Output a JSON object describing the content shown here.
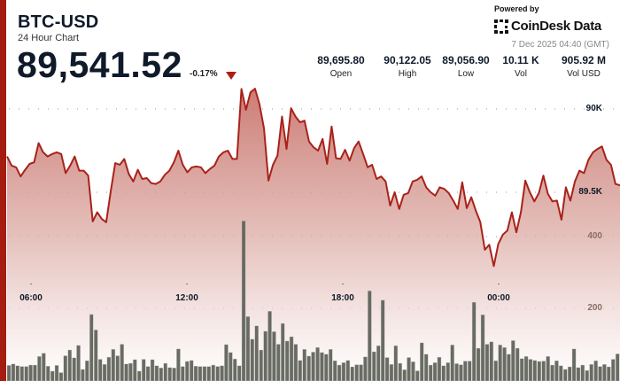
{
  "header": {
    "symbol": "BTC-USD",
    "subtitle": "24 Hour Chart",
    "price": "89,541.52",
    "change": "-0.17%",
    "change_direction": "down"
  },
  "stats": [
    {
      "value": "89,695.80",
      "label": "Open"
    },
    {
      "value": "90,122.05",
      "label": "High"
    },
    {
      "value": "89,056.90",
      "label": "Low"
    },
    {
      "value": "10.11 K",
      "label": "Vol"
    },
    {
      "value": "905.92 M",
      "label": "Vol USD"
    }
  ],
  "branding": {
    "powered_by": "Powered by",
    "logo_text": "CoinDesk Data",
    "timestamp": "7 Dec 2025 04:40 (GMT)"
  },
  "colors": {
    "accent": "#a51c10",
    "line": "#a8221a",
    "volume": "#5c5f57"
  },
  "chart_data": {
    "type": "line",
    "price_axis": {
      "ticks": [
        90000,
        89500
      ],
      "tick_labels": [
        "90K",
        "89.5K"
      ],
      "ylim": [
        89050,
        90145
      ]
    },
    "volume_axis": {
      "ticks": [
        400,
        200
      ],
      "tick_labels": [
        "400",
        "200"
      ],
      "ylim": [
        0,
        400
      ]
    },
    "x_tick_labels": [
      "06:00",
      "12:00",
      "18:00",
      "00:00"
    ],
    "grid": true,
    "price": [
      89715,
      89660,
      89650,
      89595,
      89635,
      89670,
      89680,
      89795,
      89740,
      89715,
      89730,
      89740,
      89730,
      89615,
      89660,
      89715,
      89630,
      89630,
      89600,
      89325,
      89380,
      89340,
      89320,
      89505,
      89675,
      89665,
      89700,
      89610,
      89565,
      89635,
      89580,
      89585,
      89555,
      89550,
      89565,
      89605,
      89630,
      89680,
      89750,
      89665,
      89620,
      89650,
      89655,
      89650,
      89615,
      89640,
      89660,
      89715,
      89740,
      89750,
      89700,
      89700,
      90120,
      89995,
      90100,
      90122,
      90030,
      89885,
      89570,
      89665,
      89720,
      89955,
      89760,
      90005,
      89955,
      89920,
      89930,
      89805,
      89770,
      89750,
      89820,
      89670,
      89895,
      89705,
      89700,
      89755,
      89690,
      89765,
      89805,
      89730,
      89650,
      89665,
      89580,
      89595,
      89565,
      89420,
      89500,
      89400,
      89485,
      89495,
      89565,
      89575,
      89595,
      89530,
      89500,
      89480,
      89530,
      89520,
      89495,
      89450,
      89400,
      89560,
      89405,
      89470,
      89390,
      89320,
      89155,
      89185,
      89057,
      89190,
      89245,
      89270,
      89380,
      89260,
      89380,
      89570,
      89500,
      89445,
      89495,
      89600,
      89490,
      89445,
      89450,
      89335,
      89530,
      89450,
      89565,
      89630,
      89615,
      89695,
      89740,
      89760,
      89775,
      89695,
      89665,
      89550,
      89541.52
    ],
    "volume": [
      41,
      45,
      40,
      38,
      38,
      42,
      42,
      66,
      75,
      39,
      25,
      41,
      21,
      68,
      84,
      62,
      97,
      30,
      54,
      183,
      140,
      58,
      44,
      64,
      86,
      68,
      100,
      45,
      47,
      57,
      25,
      58,
      38,
      57,
      40,
      34,
      47,
      35,
      34,
      87,
      38,
      52,
      55,
      39,
      38,
      38,
      38,
      42,
      38,
      40,
      99,
      77,
      59,
      40,
      444,
      177,
      114,
      151,
      84,
      136,
      192,
      135,
      100,
      158,
      109,
      121,
      100,
      55,
      86,
      67,
      78,
      91,
      77,
      72,
      86,
      54,
      42,
      49,
      55,
      37,
      43,
      43,
      65,
      249,
      79,
      96,
      223,
      63,
      44,
      96,
      47,
      29,
      63,
      51,
      26,
      104,
      72,
      42,
      49,
      64,
      40,
      49,
      98,
      46,
      43,
      53,
      53,
      217,
      89,
      182,
      100,
      107,
      54,
      98,
      91,
      72,
      110,
      89,
      60,
      66,
      58,
      55,
      52,
      53,
      66,
      42,
      54,
      40,
      30,
      37,
      87,
      35,
      42,
      27,
      44,
      54,
      38,
      44,
      37,
      58,
      73
    ]
  }
}
